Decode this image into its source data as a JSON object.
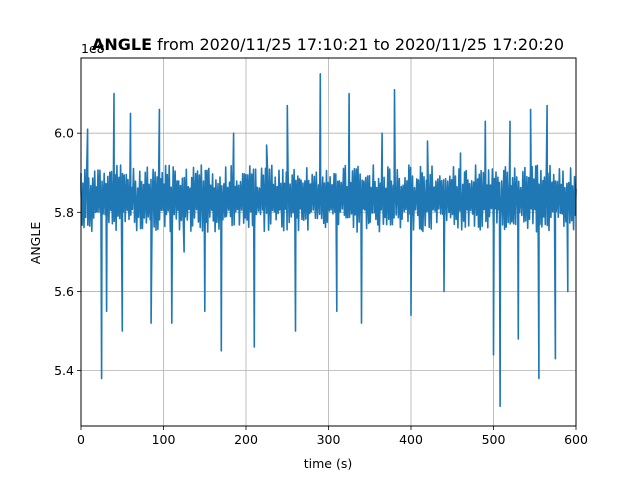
{
  "chart_data": {
    "type": "line",
    "title": {
      "bold": "ANGLE",
      "rest": " from 2020/11/25 17:10:21 to 2020/11/25 17:20:20"
    },
    "xlabel": "time (s)",
    "ylabel": "ANGLE",
    "offset_text": "1e8",
    "xlim": [
      0,
      600
    ],
    "ylim": [
      5.26,
      6.19
    ],
    "x_ticks": [
      0,
      100,
      200,
      300,
      400,
      500,
      600
    ],
    "x_tick_labels": [
      "0",
      "100",
      "200",
      "300",
      "400",
      "500",
      "600"
    ],
    "y_ticks": [
      5.4,
      5.6,
      5.8,
      6.0
    ],
    "y_tick_labels": [
      "5.4",
      "5.6",
      "5.8",
      "6.0"
    ],
    "grid": true,
    "series": [
      {
        "color": "#1f77b4",
        "x": [
          0,
          8,
          25,
          31,
          40,
          50,
          60,
          85,
          95,
          110,
          125,
          150,
          170,
          185,
          210,
          225,
          250,
          260,
          290,
          310,
          325,
          340,
          365,
          380,
          400,
          420,
          440,
          460,
          490,
          500,
          508,
          520,
          530,
          545,
          555,
          565,
          575,
          590,
          600
        ],
        "values": [
          5.86,
          6.01,
          5.38,
          5.55,
          6.1,
          5.5,
          6.05,
          5.52,
          6.06,
          5.52,
          5.7,
          5.55,
          5.45,
          6.0,
          5.46,
          5.97,
          6.07,
          5.5,
          6.15,
          5.55,
          6.1,
          5.52,
          6.0,
          6.11,
          5.54,
          5.98,
          5.6,
          5.95,
          6.03,
          5.44,
          5.31,
          6.03,
          5.48,
          6.06,
          5.38,
          6.07,
          5.43,
          5.6,
          5.86
        ],
        "band_low": 5.75,
        "band_high": 5.92
      }
    ]
  }
}
